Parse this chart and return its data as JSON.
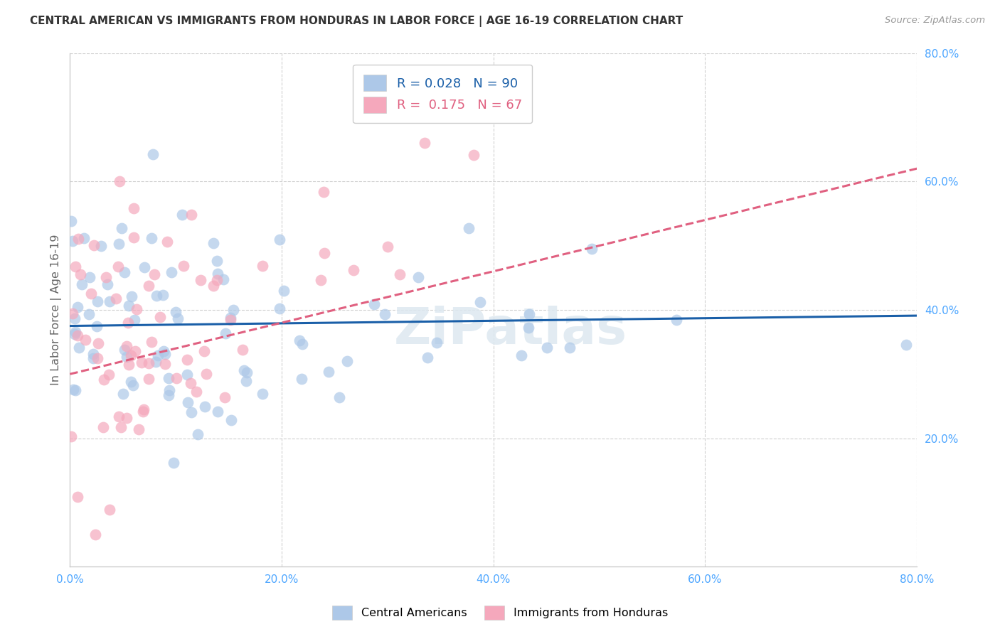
{
  "title": "CENTRAL AMERICAN VS IMMIGRANTS FROM HONDURAS IN LABOR FORCE | AGE 16-19 CORRELATION CHART",
  "source_text": "Source: ZipAtlas.com",
  "ylabel": "In Labor Force | Age 16-19",
  "xlim": [
    0.0,
    0.8
  ],
  "ylim": [
    0.0,
    0.8
  ],
  "xtick_labels": [
    "0.0%",
    "",
    "20.0%",
    "",
    "40.0%",
    "",
    "60.0%",
    "",
    "80.0%"
  ],
  "xtick_values": [
    0.0,
    0.1,
    0.2,
    0.3,
    0.4,
    0.5,
    0.6,
    0.7,
    0.8
  ],
  "ytick_labels": [
    "20.0%",
    "40.0%",
    "60.0%",
    "80.0%"
  ],
  "ytick_values": [
    0.2,
    0.4,
    0.6,
    0.8
  ],
  "blue_color": "#adc8e8",
  "pink_color": "#f5a8bc",
  "blue_line_color": "#1a5fa8",
  "pink_line_color": "#e06080",
  "tick_color": "#4da6ff",
  "blue_R": 0.028,
  "blue_N": 90,
  "pink_R": 0.175,
  "pink_N": 67,
  "legend_label_blue": "Central Americans",
  "legend_label_pink": "Immigrants from Honduras",
  "watermark": "ZiPatlas",
  "background_color": "#ffffff",
  "grid_color": "#d0d0d0"
}
